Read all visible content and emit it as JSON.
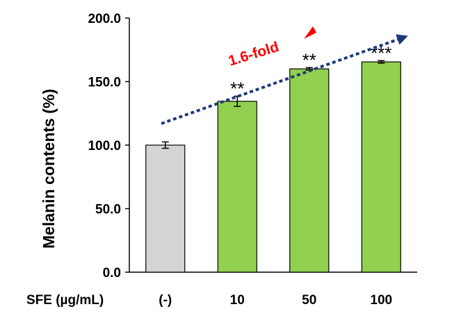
{
  "chart_data": {
    "type": "bar",
    "title": "",
    "ylabel": "Melanin contents (%)",
    "xlabel": "SFE (µg/mL)",
    "ylim": [
      0,
      200
    ],
    "yticks": [
      0,
      50,
      100,
      150,
      200
    ],
    "ytick_labels": [
      "0.0",
      "50.0",
      "100.0",
      "150.0",
      "200.0"
    ],
    "categories": [
      "(-)",
      "10",
      "50",
      "100"
    ],
    "values": [
      100,
      134.5,
      160,
      165.5
    ],
    "errors": [
      2.5,
      4,
      1,
      1
    ],
    "bar_colors": [
      "#d5d3d4",
      "#92d050",
      "#92d050",
      "#92d050"
    ],
    "significance": [
      "",
      "**",
      "**",
      "***"
    ],
    "annotation": {
      "text": "1.6-fold",
      "color": "#ff0000",
      "arrow_color": "#1f3a7a"
    }
  }
}
